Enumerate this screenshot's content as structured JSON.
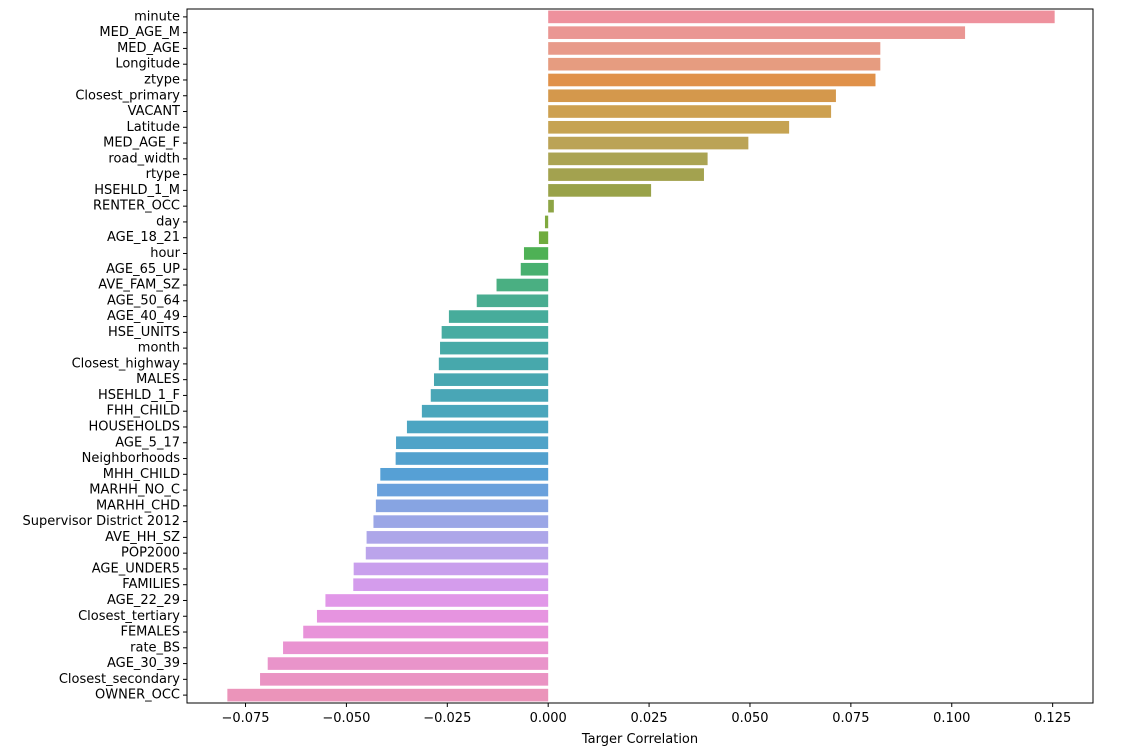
{
  "chart_data": {
    "type": "bar",
    "orientation": "horizontal",
    "xlabel": "Targer Correlation",
    "ylabel": "",
    "title": "",
    "xlim": [
      -0.0895,
      0.135
    ],
    "xticks": [
      -0.075,
      -0.05,
      -0.025,
      0.0,
      0.025,
      0.05,
      0.075,
      0.1,
      0.125
    ],
    "xtick_labels": [
      "−0.075",
      "−0.050",
      "−0.025",
      "0.000",
      "0.025",
      "0.050",
      "0.075",
      "0.100",
      "0.125"
    ],
    "grid": false,
    "categories": [
      "minute",
      "MED_AGE_M",
      "MED_AGE",
      "Longitude",
      "ztype",
      "Closest_primary",
      "VACANT",
      "Latitude",
      "MED_AGE_F",
      "road_width",
      "rtype",
      "HSEHLD_1_M",
      "RENTER_OCC",
      "day",
      "AGE_18_21",
      "hour",
      "AGE_65_UP",
      "AVE_FAM_SZ",
      "AGE_50_64",
      "AGE_40_49",
      "HSE_UNITS",
      "month",
      "Closest_highway",
      "MALES",
      "HSEHLD_1_F",
      "FHH_CHILD",
      "HOUSEHOLDS",
      "AGE_5_17",
      "Neighborhoods",
      "MHH_CHILD",
      "MARHH_NO_C",
      "MARHH_CHD",
      "Supervisor District 2012",
      "AVE_HH_SZ",
      "POP2000",
      "AGE_UNDER5",
      "FAMILIES",
      "AGE_22_29",
      "Closest_tertiary",
      "FEMALES",
      "rate_BS",
      "AGE_30_39",
      "Closest_secondary",
      "OWNER_OCC"
    ],
    "values": [
      0.1255,
      0.1033,
      0.0823,
      0.0823,
      0.0811,
      0.0713,
      0.0701,
      0.0597,
      0.0496,
      0.0395,
      0.0386,
      0.0255,
      0.0014,
      -0.0008,
      -0.0023,
      -0.006,
      -0.0068,
      -0.0128,
      -0.0177,
      -0.0246,
      -0.0264,
      -0.0268,
      -0.0271,
      -0.0283,
      -0.0291,
      -0.0313,
      -0.035,
      -0.0377,
      -0.0378,
      -0.0416,
      -0.0424,
      -0.0427,
      -0.0433,
      -0.045,
      -0.0452,
      -0.0482,
      -0.0483,
      -0.0552,
      -0.0573,
      -0.0607,
      -0.0657,
      -0.0695,
      -0.0714,
      -0.0795
    ],
    "colors": [
      "#ee919d",
      "#ea9693",
      "#e89a8a",
      "#e69c80",
      "#e0914a",
      "#d4984c",
      "#cda050",
      "#c6a352",
      "#bba356",
      "#aba453",
      "#a3a24f",
      "#99a249",
      "#8da445",
      "#80a93f",
      "#6fac3e",
      "#4eb155",
      "#48b06f",
      "#4aaf82",
      "#49ad91",
      "#47ac9b",
      "#47aca2",
      "#47aaa7",
      "#47a8ac",
      "#48a7b1",
      "#49a6b6",
      "#4aa6bc",
      "#4ca5c2",
      "#4fa3c8",
      "#52a1ce",
      "#56a0d5",
      "#6aa1dc",
      "#87a4e2",
      "#9ba6e6",
      "#ada6e9",
      "#bba4eb",
      "#c99fed",
      "#d49cec",
      "#e197e8",
      "#e694e0",
      "#e893d9",
      "#e993d1",
      "#e994ca",
      "#ea93c3",
      "#eb94ba"
    ]
  }
}
